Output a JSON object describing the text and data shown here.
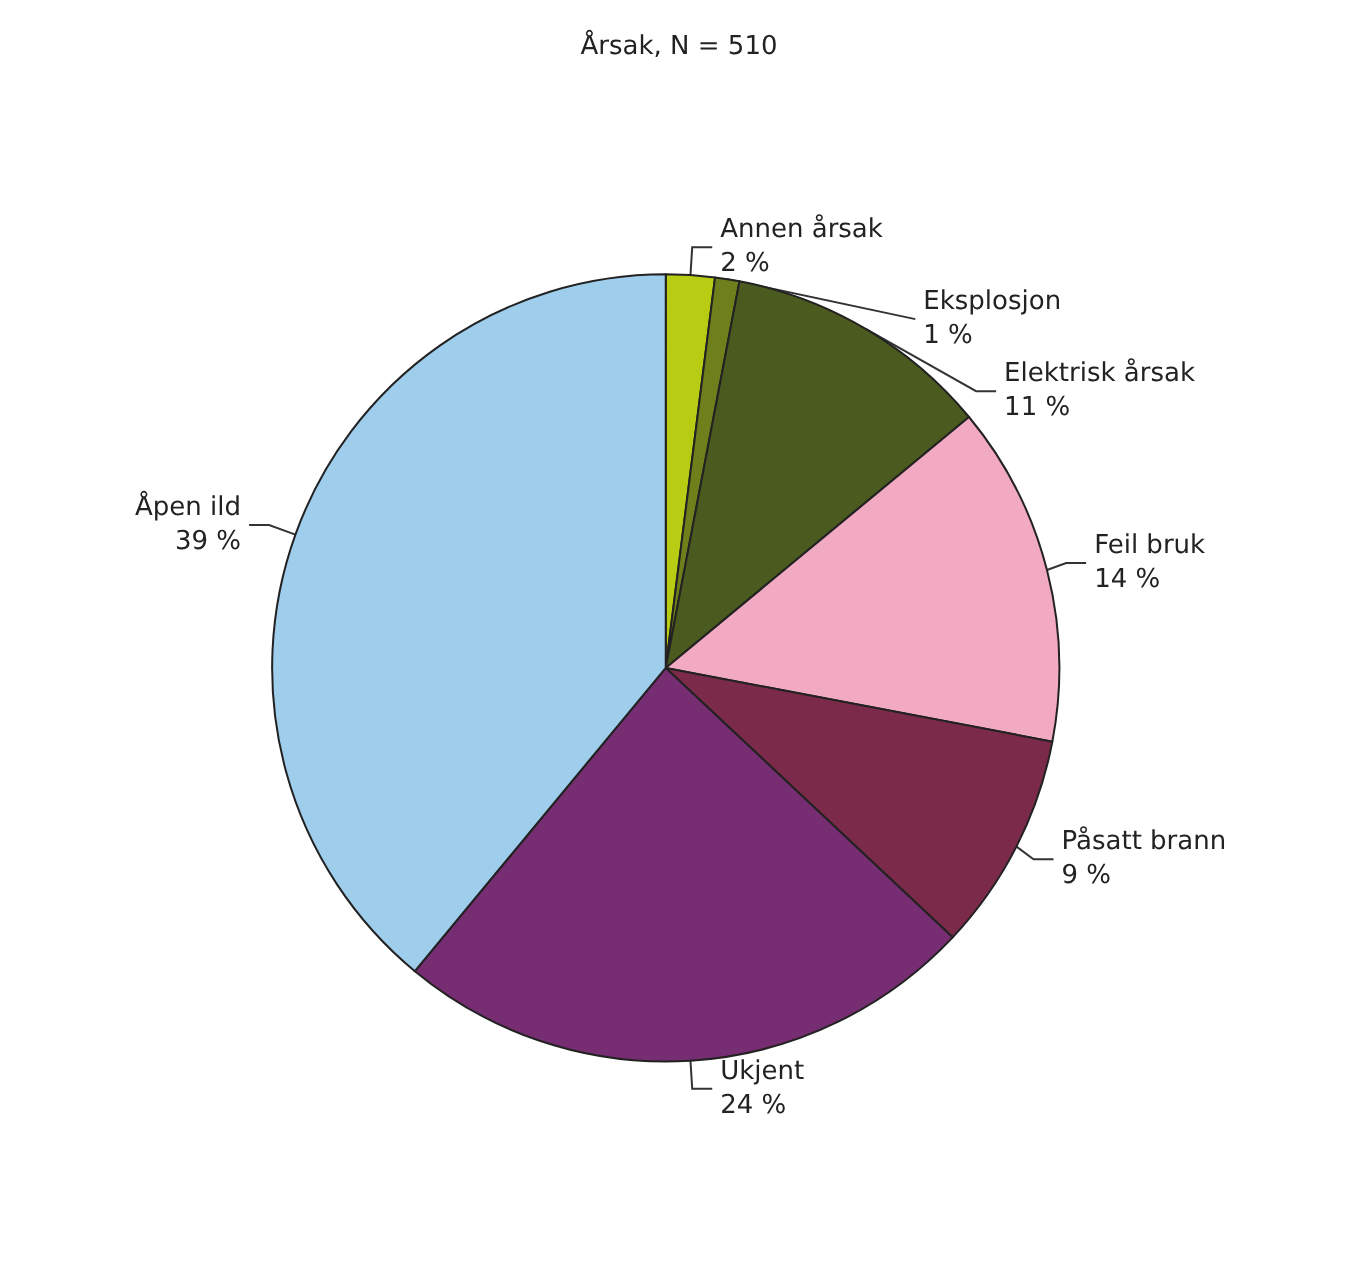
{
  "chart_data": {
    "type": "pie",
    "title": "Årsak, N = 510",
    "categories": [
      "Annen årsak",
      "Eksplosjon",
      "Elektrisk årsak",
      "Feil bruk",
      "Påsatt brann",
      "Ukjent",
      "Åpen ild"
    ],
    "values": [
      2,
      1,
      11,
      14,
      9,
      24,
      39
    ],
    "value_labels": [
      "2 %",
      "1 %",
      "11 %",
      "14 %",
      "9 %",
      "24 %",
      "39 %"
    ],
    "colors": [
      "#b8cc14",
      "#6e7f1c",
      "#4b5a1f",
      "#f2a9c2",
      "#7b2a4a",
      "#772d72",
      "#9fcdec"
    ],
    "legend": false
  }
}
